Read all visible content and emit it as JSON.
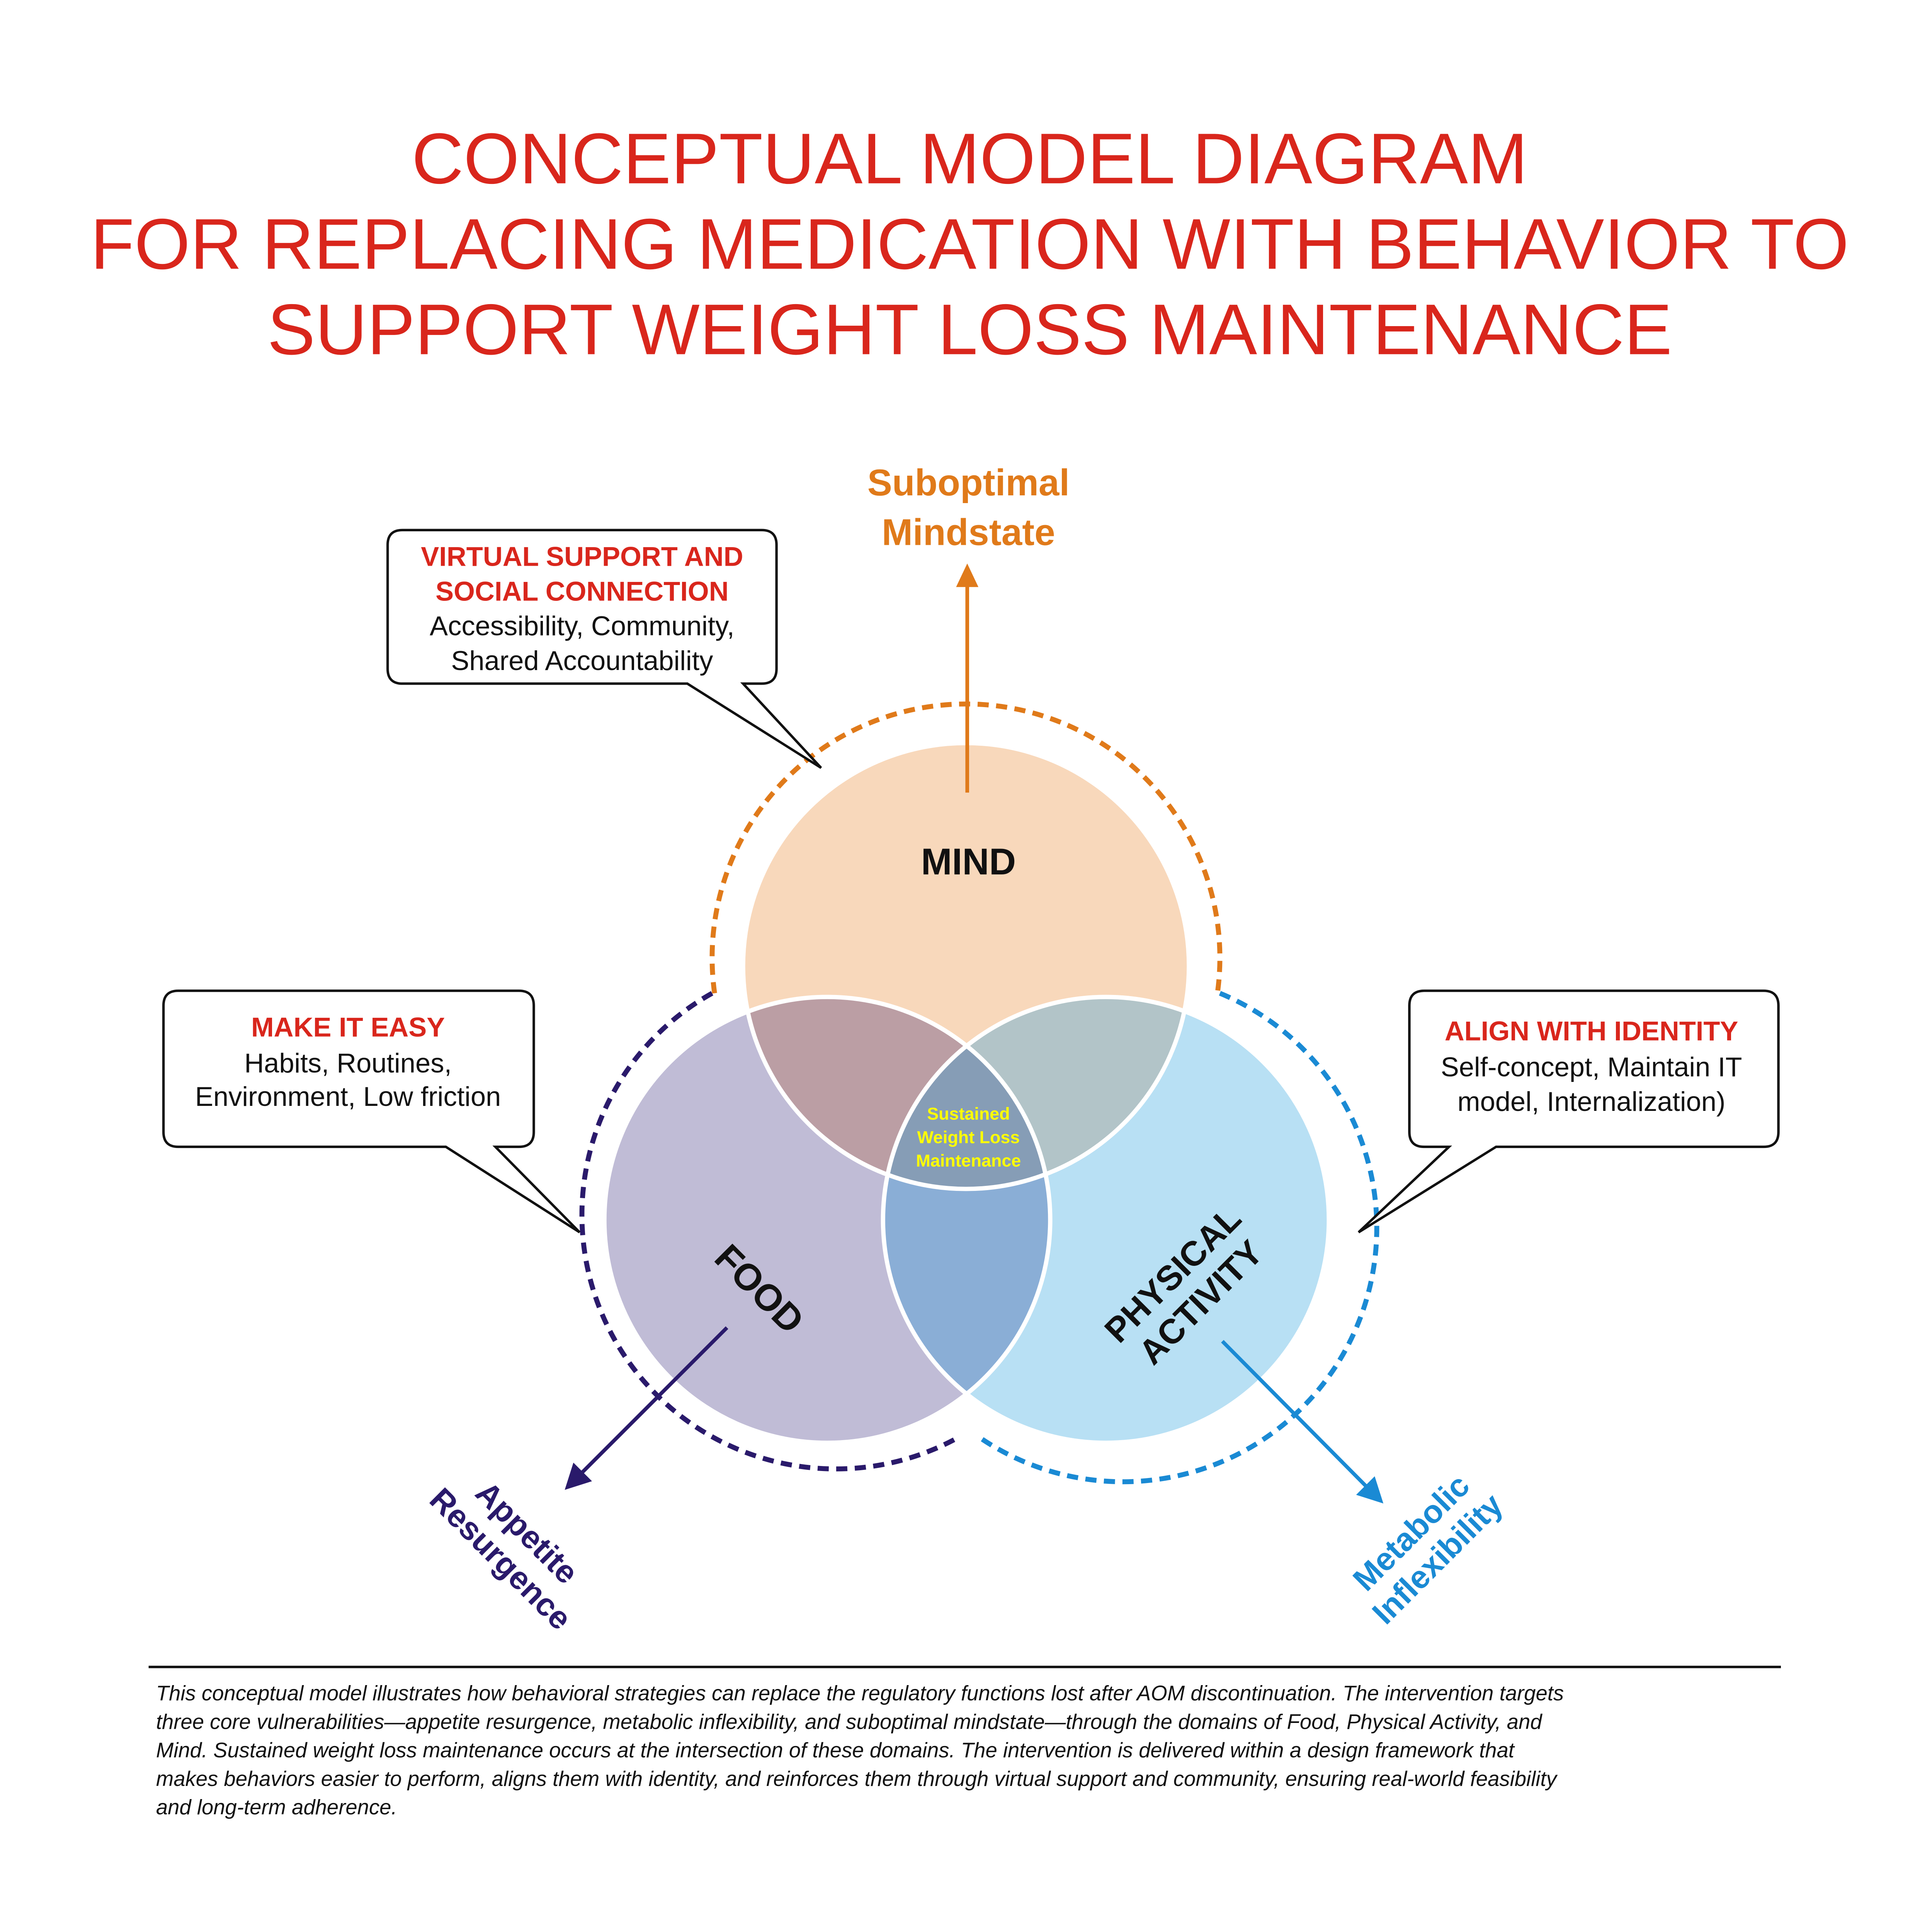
{
  "title": {
    "line1": "CONCEPTUAL MODEL DIAGRAM",
    "line2": "FOR REPLACING MEDICATION WITH BEHAVIOR TO",
    "line3": "SUPPORT WEIGHT LOSS MAINTENANCE"
  },
  "colors": {
    "title": "#d9261c",
    "mind": "#f8d8bb",
    "food": "#c0bcd6",
    "physical_activity": "#b8e0f4",
    "mind_food": "#bb9ea4",
    "mind_pa": "#b2c4c8",
    "food_pa": "#8aaed6",
    "center": "#869db6",
    "center_text": "#ffff00",
    "orange": "#e07a1a",
    "navy": "#2a1a6b",
    "blue": "#1a8ad4"
  },
  "circles": {
    "mind": "MIND",
    "food": "FOOD",
    "pa_line1": "PHYSICAL",
    "pa_line2": "ACTIVITY",
    "center_line1": "Sustained",
    "center_line2": "Weight Loss",
    "center_line3": "Maintenance"
  },
  "vulnerabilities": {
    "mind_line1": "Suboptimal",
    "mind_line2": "Mindstate",
    "food_line1": "Appetite",
    "food_line2": "Resurgence",
    "pa_line1": "Metabolic",
    "pa_line2": "Inflexibility"
  },
  "callouts": [
    {
      "heading1": "VIRTUAL SUPPORT AND",
      "heading2": "SOCIAL CONNECTION",
      "body1": "Accessibility, Community,",
      "body2": "Shared Accountability"
    },
    {
      "heading1": "MAKE IT EASY",
      "body1": "Habits, Routines,",
      "body2": "Environment, Low friction"
    },
    {
      "heading1": "ALIGN WITH IDENTITY",
      "body1": "Self-concept, Maintain IT",
      "body2": "model, Internalization)"
    }
  ],
  "caption": [
    "This conceptual model illustrates how behavioral strategies can replace the regulatory functions lost after AOM discontinuation. The intervention targets",
    "three core vulnerabilities—appetite resurgence, metabolic inflexibility, and suboptimal mindstate—through the domains of Food, Physical Activity, and",
    "Mind. Sustained weight loss maintenance occurs at the intersection of these domains. The intervention is delivered within a design framework that",
    "makes behaviors easier to perform, aligns them with identity, and reinforces them through virtual support and community, ensuring real-world feasibility",
    "and long-term adherence."
  ]
}
